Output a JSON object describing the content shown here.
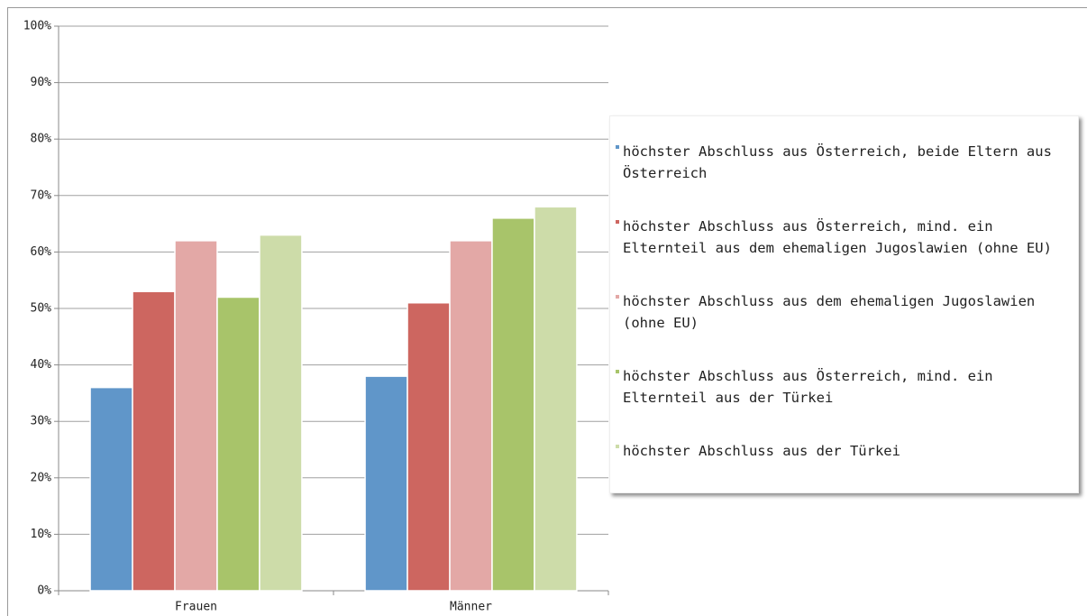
{
  "chart_data": {
    "type": "bar",
    "categories": [
      "Frauen",
      "Männer"
    ],
    "series": [
      {
        "name": "höchster Abschluss aus Österreich, beide Eltern aus Österreich",
        "color": "#6096c9",
        "values": [
          36,
          38
        ]
      },
      {
        "name": "höchster Abschluss aus Österreich, mind. ein Elternteil aus dem ehemaligen Jugoslawien (ohne EU)",
        "color": "#cd6660",
        "values": [
          53,
          51
        ]
      },
      {
        "name": "höchster Abschluss aus dem ehemaligen Jugoslawien (ohne EU)",
        "color": "#e3a8a6",
        "values": [
          62,
          62
        ]
      },
      {
        "name": "höchster Abschluss aus Österreich, mind. ein Elternteil aus der Türkei",
        "color": "#a8c46a",
        "values": [
          52,
          66
        ]
      },
      {
        "name": "höchster Abschluss aus der Türkei",
        "color": "#cddca9",
        "values": [
          63,
          68
        ]
      }
    ],
    "ylim": [
      0,
      100
    ],
    "yticks": [
      {
        "value": 0,
        "label": "0%"
      },
      {
        "value": 10,
        "label": "10%"
      },
      {
        "value": 20,
        "label": "20%"
      },
      {
        "value": 30,
        "label": "30%"
      },
      {
        "value": 40,
        "label": "40%"
      },
      {
        "value": 50,
        "label": "50%"
      },
      {
        "value": 60,
        "label": "60%"
      },
      {
        "value": 70,
        "label": "70%"
      },
      {
        "value": 80,
        "label": "80%"
      },
      {
        "value": 90,
        "label": "90%"
      },
      {
        "value": 100,
        "label": "100%"
      }
    ],
    "grid": true,
    "legend": "right"
  }
}
